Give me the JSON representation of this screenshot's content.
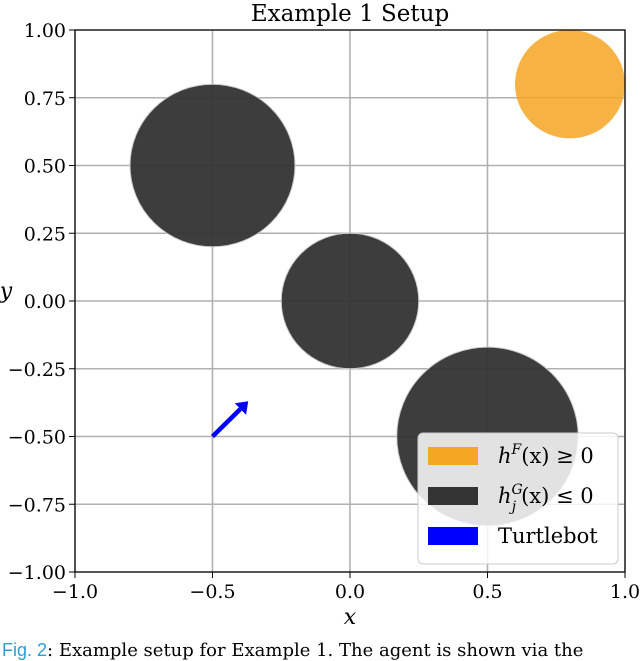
{
  "chart_data": {
    "type": "scatter",
    "title": "Example 1 Setup",
    "xlabel": "x",
    "ylabel": "y",
    "xlim": [
      -1.0,
      1.0
    ],
    "ylim": [
      -1.0,
      1.0
    ],
    "xticks": [
      -1.0,
      -0.5,
      0.0,
      0.5,
      1.0
    ],
    "xtick_labels": [
      "−1.0",
      "−0.5",
      "0.0",
      "0.5",
      "1.0"
    ],
    "yticks": [
      1.0,
      0.75,
      0.5,
      0.25,
      0.0,
      -0.25,
      -0.5,
      -0.75,
      -1.0
    ],
    "ytick_labels": [
      "1.00",
      "0.75",
      "0.50",
      "0.25",
      "0.00",
      "−0.25",
      "−0.50",
      "−0.75",
      "−1.00"
    ],
    "grid": true,
    "legend_position": "bottom-right",
    "goal_region": {
      "center": [
        0.8,
        0.8
      ],
      "radius": 0.2,
      "color": "#f5a623"
    },
    "obstacles": [
      {
        "center": [
          -0.5,
          0.5
        ],
        "radius": 0.3
      },
      {
        "center": [
          0.0,
          0.0
        ],
        "radius": 0.25
      },
      {
        "center": [
          0.5,
          -0.5
        ],
        "radius": 0.33
      }
    ],
    "obstacle_color": "#333333",
    "agent": {
      "start": [
        -0.5,
        -0.5
      ],
      "end": [
        -0.37,
        -0.37
      ],
      "color": "#0000ff"
    },
    "legend": [
      {
        "label": "h^F(x) ≥ 0",
        "main": "h",
        "sup": "F",
        "sub": "",
        "rest": "(x) ≥ 0",
        "color": "#f5a623"
      },
      {
        "label": "h_j^G(x) ≤ 0",
        "main": "h",
        "sup": "G",
        "sub": "j",
        "rest": "(x) ≤ 0",
        "color": "#333333"
      },
      {
        "label": "Turtlebot",
        "main": "Turtlebot",
        "sup": "",
        "sub": "",
        "rest": "",
        "color": "#0000ff"
      }
    ]
  },
  "caption": {
    "fig_label": "Fig. 2",
    "text": ": Example setup for Example 1. The agent is shown via the"
  }
}
